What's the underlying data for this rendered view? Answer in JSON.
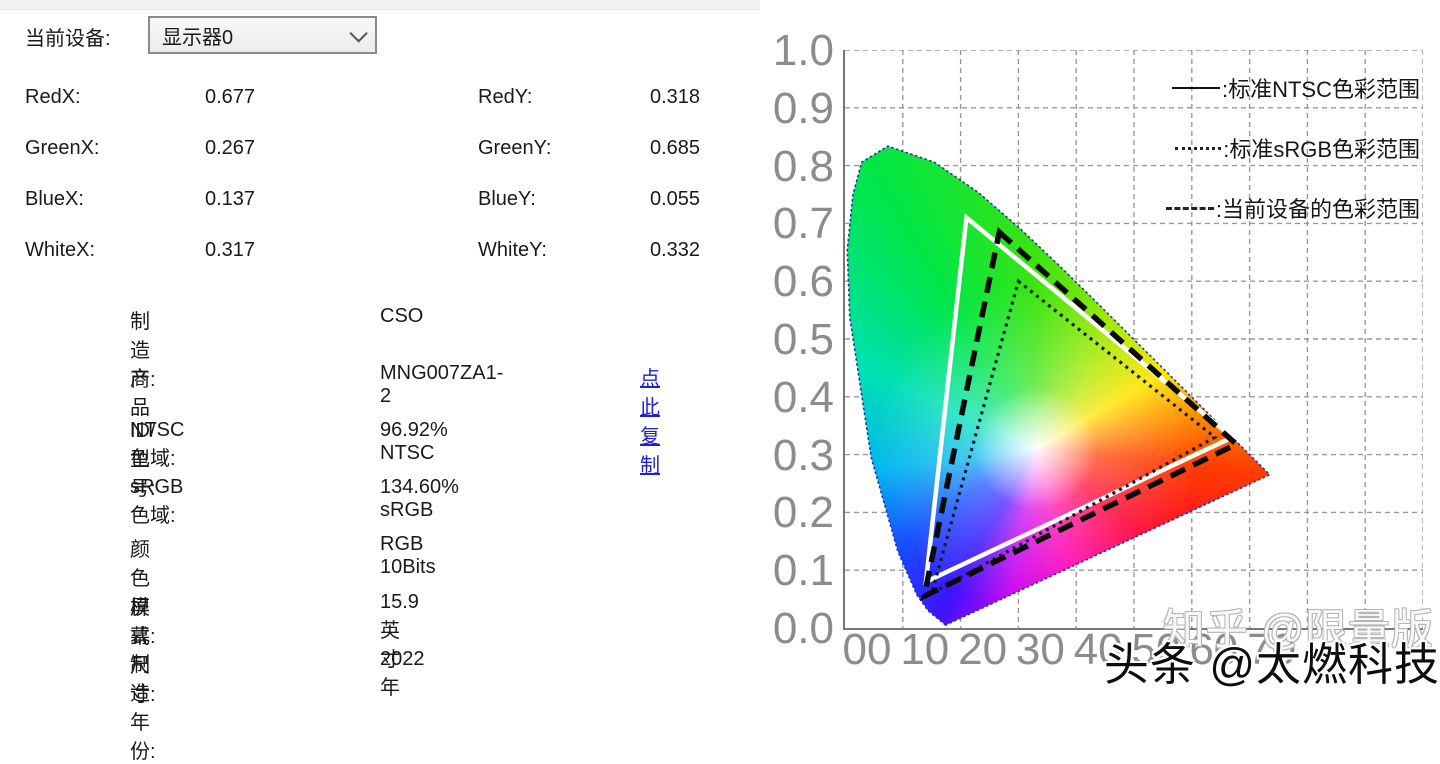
{
  "device_panel": {
    "current_device_label": "当前设备:",
    "device_select": {
      "value": "显示器0"
    },
    "coordinates": [
      {
        "label1": "RedX:",
        "value1": "0.677",
        "label2": "RedY:",
        "value2": "0.318"
      },
      {
        "label1": "GreenX:",
        "value1": "0.267",
        "label2": "GreenY:",
        "value2": "0.685"
      },
      {
        "label1": "BlueX:",
        "value1": "0.137",
        "label2": "BlueY:",
        "value2": "0.055"
      },
      {
        "label1": "WhiteX:",
        "value1": "0.317",
        "label2": "WhiteY:",
        "value2": "0.332"
      }
    ],
    "info_rows": [
      {
        "label": "制造商:",
        "value": "CSO"
      },
      {
        "label": "产品ID/型号:",
        "value": "MNG007ZA1-2",
        "link": "点此复制"
      },
      {
        "label": "NTSC色域:",
        "value": "96.92% NTSC"
      },
      {
        "label": "sRGB色域:",
        "value": "134.60% sRGB"
      },
      {
        "label": "颜色模式:",
        "value": "RGB 10Bits"
      },
      {
        "label": "屏幕尺寸:",
        "value": "15.9英寸"
      },
      {
        "label": "制造年份:",
        "value": "2022年"
      }
    ]
  },
  "chart_data": {
    "type": "line",
    "title": "",
    "x_range": [
      0.0,
      1.0
    ],
    "y_range": [
      0.0,
      1.0
    ],
    "grid": true,
    "x_tick_labels": [
      "00",
      "10",
      "20",
      "30",
      "40",
      "50",
      "60",
      "70"
    ],
    "y_tick_labels": [
      "1.0",
      "0.9",
      "0.8",
      "0.7",
      "0.6",
      "0.5",
      "0.4",
      "0.3",
      "0.2",
      "0.1",
      "0.0"
    ],
    "legend_position": "top-right",
    "legend": [
      {
        "style": "solid",
        "label": ":标准NTSC色彩范围"
      },
      {
        "style": "dotted",
        "label": ":标准sRGB色彩范围"
      },
      {
        "style": "dashed",
        "label": ":当前设备的色彩范围"
      }
    ],
    "series": [
      {
        "name": "标准NTSC色彩范围",
        "style": "solid",
        "color": "#ffffff",
        "width": 4.5,
        "points": [
          [
            0.21,
            0.71
          ],
          [
            0.67,
            0.33
          ],
          [
            0.14,
            0.08
          ]
        ]
      },
      {
        "name": "标准sRGB色彩范围",
        "style": "dotted",
        "color": "#141c22",
        "width": 3.2,
        "points": [
          [
            0.3,
            0.6
          ],
          [
            0.64,
            0.33
          ],
          [
            0.15,
            0.06
          ]
        ]
      },
      {
        "name": "当前设备的色彩范围",
        "style": "dashed",
        "color": "#0a0a0a",
        "width": 5.5,
        "points": [
          [
            0.267,
            0.685
          ],
          [
            0.677,
            0.318
          ],
          [
            0.137,
            0.055
          ]
        ]
      }
    ],
    "spectral_locus": [
      [
        0.1741,
        0.005
      ],
      [
        0.144,
        0.0297
      ],
      [
        0.1241,
        0.0578
      ],
      [
        0.0913,
        0.1327
      ],
      [
        0.0454,
        0.295
      ],
      [
        0.0082,
        0.5384
      ],
      [
        0.0039,
        0.6548
      ],
      [
        0.0139,
        0.7502
      ],
      [
        0.0289,
        0.8059
      ],
      [
        0.0743,
        0.8338
      ],
      [
        0.1547,
        0.8059
      ],
      [
        0.2296,
        0.7543
      ],
      [
        0.3016,
        0.6923
      ],
      [
        0.3731,
        0.6245
      ],
      [
        0.4441,
        0.5547
      ],
      [
        0.5125,
        0.4866
      ],
      [
        0.5752,
        0.4242
      ],
      [
        0.627,
        0.3725
      ],
      [
        0.6658,
        0.334
      ],
      [
        0.6915,
        0.3083
      ],
      [
        0.719,
        0.2809
      ],
      [
        0.7347,
        0.2653
      ]
    ]
  },
  "watermarks": {
    "upper": "知乎 @限量版",
    "lower": "头条 @太燃科技"
  }
}
